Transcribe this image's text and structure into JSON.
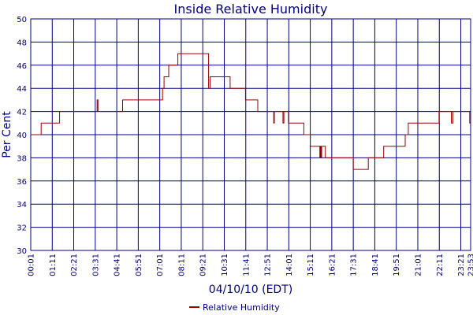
{
  "chart_data": {
    "type": "line",
    "title": "Inside Relative Humidity",
    "xlabel": "04/10/10 (EDT)",
    "ylabel": "Per Cent",
    "ylim": [
      30,
      50
    ],
    "yticks": [
      "30",
      "32",
      "34",
      "36",
      "38",
      "40",
      "42",
      "44",
      "46",
      "48",
      "50"
    ],
    "xticks": [
      "00:01",
      "01:11",
      "02:21",
      "03:31",
      "04:41",
      "05:51",
      "07:01",
      "08:11",
      "09:21",
      "10:31",
      "11:41",
      "12:51",
      "14:01",
      "15:11",
      "16:21",
      "17:31",
      "18:41",
      "19:51",
      "21:01",
      "22:11",
      "23:21",
      "23:53"
    ],
    "grid": true,
    "legend_position": "bottom-center",
    "colors": {
      "series": "#990000",
      "grid": "#000080",
      "text": "#000080"
    },
    "series": [
      {
        "name": "Relative Humidity",
        "x": [
          "00:01",
          "00:30",
          "00:35",
          "01:30",
          "01:35",
          "03:35",
          "03:37",
          "03:40",
          "04:41",
          "04:45",
          "04:55",
          "05:00",
          "05:05",
          "05:51",
          "06:40",
          "07:01",
          "07:10",
          "07:15",
          "07:20",
          "07:30",
          "07:40",
          "07:55",
          "08:00",
          "08:05",
          "09:21",
          "09:35",
          "09:40",
          "09:45",
          "09:50",
          "10:31",
          "10:50",
          "11:00",
          "11:20",
          "11:40",
          "11:55",
          "12:00",
          "12:20",
          "12:40",
          "13:10",
          "13:12",
          "13:14",
          "13:40",
          "13:42",
          "13:45",
          "14:00",
          "14:01",
          "14:25",
          "14:30",
          "14:50",
          "14:52",
          "14:55",
          "15:05",
          "15:11",
          "15:40",
          "15:42",
          "15:44",
          "15:46",
          "15:48",
          "16:00",
          "16:21",
          "16:40",
          "17:00",
          "17:31",
          "17:45",
          "18:15",
          "18:20",
          "18:41",
          "19:00",
          "19:10",
          "19:51",
          "20:00",
          "20:20",
          "20:30",
          "21:01",
          "21:30",
          "22:00",
          "22:10",
          "22:20",
          "22:45",
          "22:50",
          "22:55",
          "23:21",
          "23:45",
          "23:50",
          "23:53"
        ],
        "values": [
          40,
          40,
          41,
          41,
          42,
          42,
          43,
          42,
          42,
          42,
          42,
          43,
          43,
          43,
          43,
          43,
          44,
          45,
          45,
          46,
          46,
          46,
          47,
          47,
          47,
          47,
          44,
          45,
          45,
          45,
          44,
          44,
          44,
          43,
          43,
          43,
          42,
          42,
          42,
          41,
          42,
          42,
          41,
          42,
          41,
          41,
          41,
          41,
          40,
          40,
          40,
          40,
          39,
          39,
          38,
          39,
          38,
          39,
          38,
          38,
          38,
          38,
          37,
          37,
          37,
          38,
          38,
          38,
          39,
          39,
          39,
          40,
          41,
          41,
          41,
          41,
          42,
          42,
          42,
          41,
          42,
          42,
          42,
          41,
          41
        ]
      }
    ]
  }
}
